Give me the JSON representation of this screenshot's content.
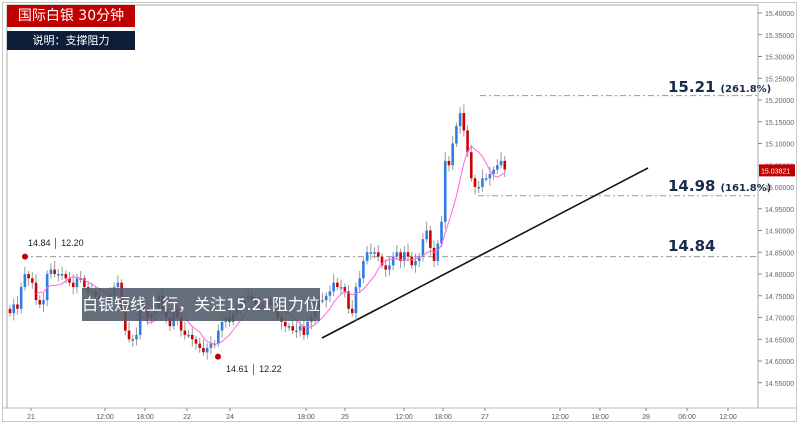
{
  "header": {
    "title": "国际白银 30分钟",
    "subtitle": "说明：支撑阻力"
  },
  "annotation": "白银短线上行，关注15.21阻力位",
  "levels": [
    {
      "price": "15.21",
      "pct": "(261.8%)"
    },
    {
      "price": "14.98",
      "pct": "(161.8%)"
    },
    {
      "price": "14.84",
      "pct": ""
    }
  ],
  "markers": [
    {
      "label": "14.84 │ 12.20",
      "price": 14.84
    },
    {
      "label": "14.61 │ 12.22",
      "price": 14.61
    }
  ],
  "current_price": "15.03821",
  "colors": {
    "up": "#2f7de1",
    "down": "#d00000",
    "ma": "#ff66dd",
    "tag": "#c00000"
  },
  "chart_data": {
    "type": "candlestick",
    "title": "国际白银 30分钟",
    "ylim": [
      14.53,
      15.42
    ],
    "y_ticks": [
      "15.40000",
      "15.35000",
      "15.30000",
      "15.25000",
      "15.20000",
      "15.15000",
      "15.10000",
      "15.05000",
      "15.00000",
      "14.95000",
      "14.90000",
      "14.85000",
      "14.80000",
      "14.75000",
      "14.70000",
      "14.65000",
      "14.60000",
      "14.55000"
    ],
    "x_ticks": [
      "21",
      "12:00",
      "18:00",
      "22",
      "24",
      "18:00",
      "25",
      "12:00",
      "18:00",
      "27",
      "12:00",
      "18:00",
      "28",
      "06:00",
      "12:00"
    ],
    "start": 14.72,
    "closes": [
      14.71,
      14.73,
      14.72,
      14.77,
      14.8,
      14.79,
      14.78,
      14.74,
      14.73,
      14.74,
      14.8,
      14.81,
      14.8,
      14.8,
      14.8,
      14.79,
      14.78,
      14.77,
      14.79,
      14.79,
      14.77,
      14.76,
      14.76,
      14.75,
      14.74,
      14.74,
      14.73,
      14.75,
      14.77,
      14.78,
      14.72,
      14.67,
      14.65,
      14.65,
      14.66,
      14.74,
      14.72,
      14.7,
      14.71,
      14.72,
      14.75,
      14.72,
      14.7,
      14.68,
      14.72,
      14.7,
      14.67,
      14.66,
      14.66,
      14.65,
      14.64,
      14.63,
      14.62,
      14.63,
      14.64,
      14.64,
      14.67,
      14.69,
      14.7,
      14.69,
      14.71,
      14.72,
      14.73,
      14.74,
      14.75,
      14.74,
      14.73,
      14.72,
      14.73,
      14.74,
      14.73,
      14.72,
      14.7,
      14.69,
      14.68,
      14.68,
      14.67,
      14.67,
      14.68,
      14.66,
      14.69,
      14.7,
      14.72,
      14.74,
      14.74,
      14.75,
      14.76,
      14.78,
      14.77,
      14.77,
      14.76,
      14.72,
      14.71,
      14.77,
      14.79,
      14.83,
      14.85,
      14.85,
      14.85,
      14.84,
      14.82,
      14.81,
      14.82,
      14.84,
      14.85,
      14.83,
      14.85,
      14.84,
      14.82,
      14.83,
      14.84,
      14.88,
      14.9,
      14.86,
      14.83,
      14.87,
      14.92,
      15.06,
      15.05,
      15.1,
      15.14,
      15.17,
      15.13,
      15.08,
      15.02,
      15.0,
      15.0,
      15.02,
      15.02,
      15.03,
      15.04,
      15.05,
      15.06,
      15.04
    ],
    "ma_period": 8,
    "support_trendline": [
      [
        14.66,
        "25 early"
      ],
      [
        15.06,
        "27 late"
      ]
    ]
  }
}
